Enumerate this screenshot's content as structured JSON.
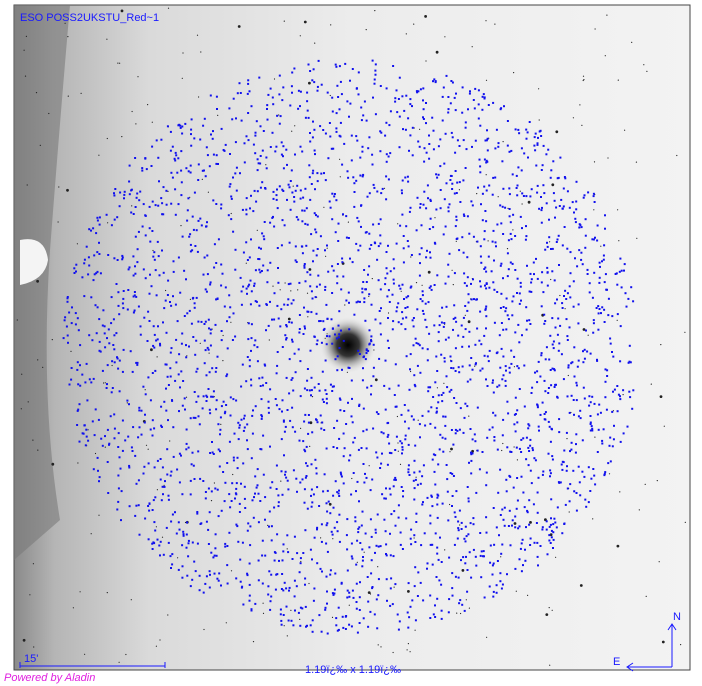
{
  "header": {
    "survey": "ESO POSS2UKSTU_Red~1"
  },
  "scale": {
    "label": "15'"
  },
  "footer": {
    "credit": "Powered by Aladin",
    "field_size": "1.19ï¿‰ x 1.19ï¿‰"
  },
  "compass": {
    "north": "N",
    "east": "E"
  }
}
